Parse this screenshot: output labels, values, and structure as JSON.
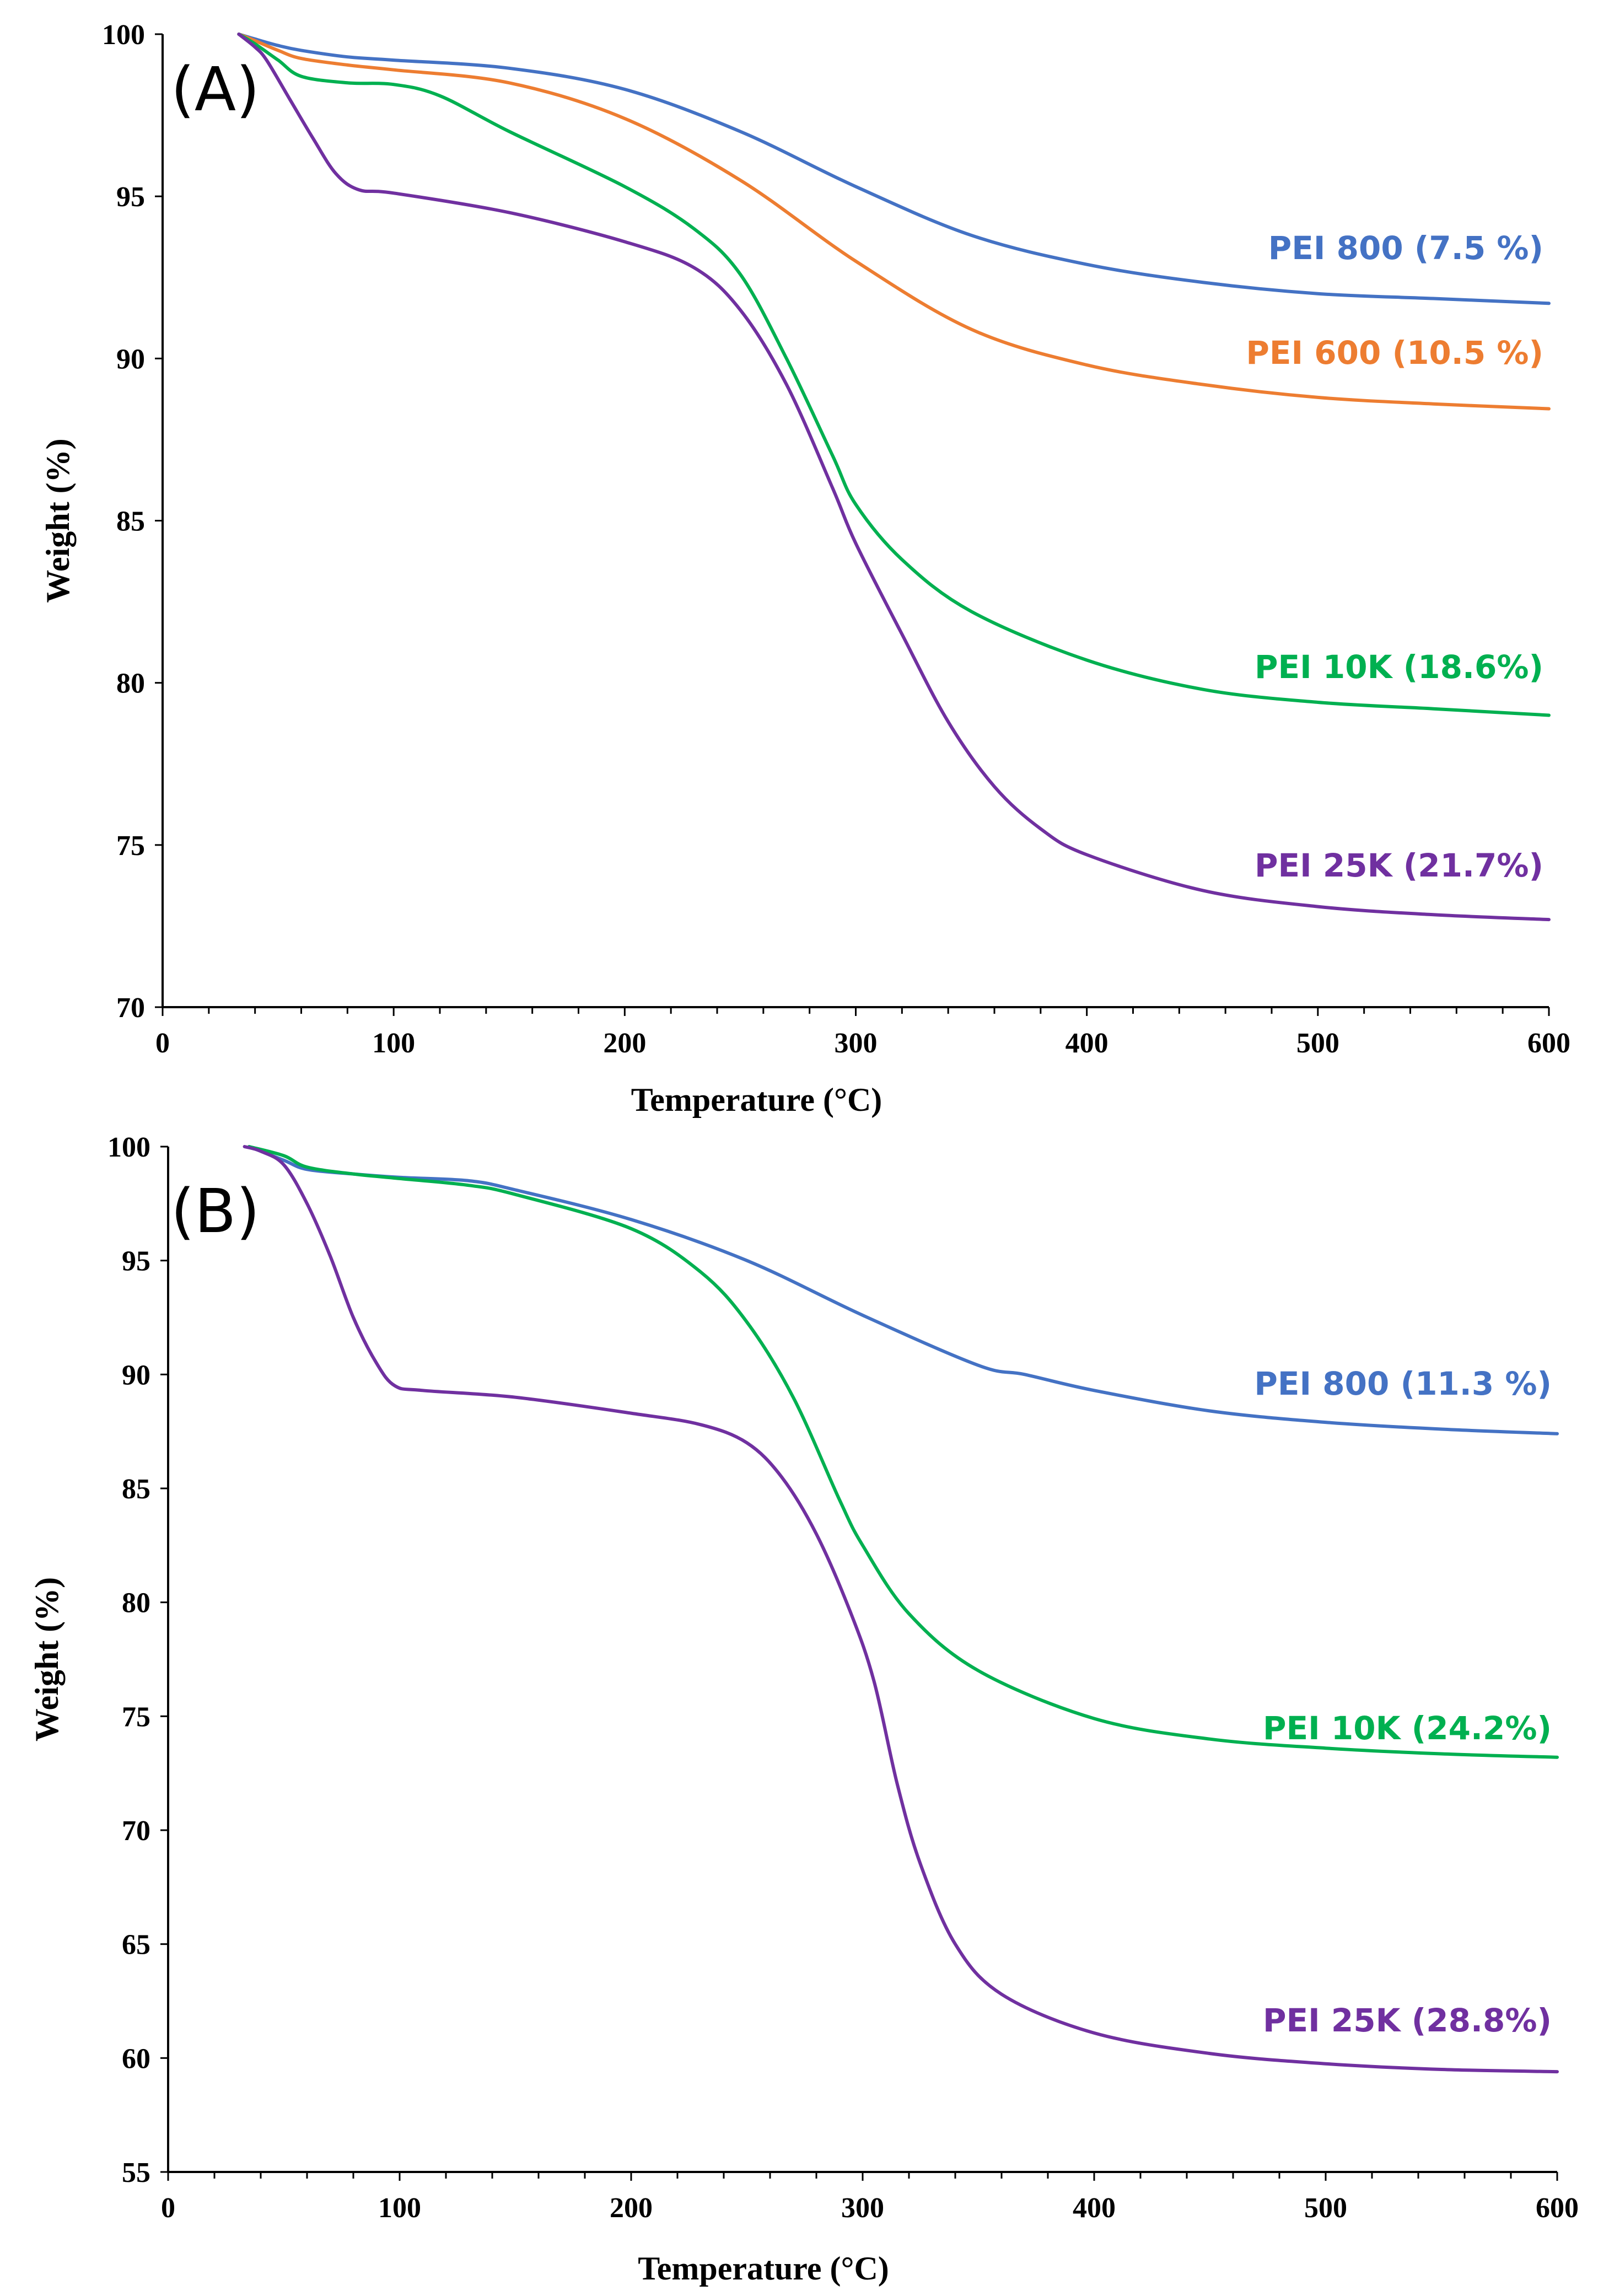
{
  "chart_data": [
    {
      "type": "line",
      "panel_label": "(A)",
      "xlabel": "Temperature (°C)",
      "ylabel": "Weight (%)",
      "xlim": [
        0,
        600
      ],
      "ylim": [
        70,
        100
      ],
      "xticks": [
        0,
        100,
        200,
        300,
        400,
        500,
        600
      ],
      "yticks": [
        70,
        75,
        80,
        85,
        90,
        95,
        100
      ],
      "grid": false,
      "series": [
        {
          "name": "PEI 800 (7.5 %)",
          "color": "#4472C4",
          "points": [
            [
              33,
              100
            ],
            [
              40,
              99.85
            ],
            [
              50,
              99.65
            ],
            [
              60,
              99.5
            ],
            [
              80,
              99.3
            ],
            [
              100,
              99.2
            ],
            [
              150,
              98.95
            ],
            [
              200,
              98.3
            ],
            [
              250,
              97.0
            ],
            [
              300,
              95.3
            ],
            [
              350,
              93.8
            ],
            [
              400,
              92.9
            ],
            [
              450,
              92.35
            ],
            [
              500,
              92.0
            ],
            [
              550,
              91.85
            ],
            [
              600,
              91.7
            ]
          ]
        },
        {
          "name": "PEI 600 (10.5 %)",
          "color": "#ED7D31",
          "points": [
            [
              33,
              100
            ],
            [
              40,
              99.8
            ],
            [
              50,
              99.5
            ],
            [
              60,
              99.25
            ],
            [
              80,
              99.05
            ],
            [
              100,
              98.9
            ],
            [
              150,
              98.5
            ],
            [
              200,
              97.4
            ],
            [
              250,
              95.5
            ],
            [
              300,
              93.0
            ],
            [
              350,
              90.9
            ],
            [
              400,
              89.8
            ],
            [
              450,
              89.2
            ],
            [
              500,
              88.8
            ],
            [
              550,
              88.6
            ],
            [
              600,
              88.45
            ]
          ]
        },
        {
          "name": "PEI 10K (18.6%)",
          "color": "#00B050",
          "points": [
            [
              33,
              100
            ],
            [
              40,
              99.7
            ],
            [
              50,
              99.2
            ],
            [
              60,
              98.7
            ],
            [
              80,
              98.5
            ],
            [
              100,
              98.45
            ],
            [
              120,
              98.1
            ],
            [
              150,
              97.0
            ],
            [
              200,
              95.3
            ],
            [
              230,
              94.0
            ],
            [
              250,
              92.6
            ],
            [
              270,
              90.0
            ],
            [
              290,
              87.0
            ],
            [
              300,
              85.5
            ],
            [
              320,
              83.8
            ],
            [
              350,
              82.2
            ],
            [
              400,
              80.7
            ],
            [
              450,
              79.8
            ],
            [
              500,
              79.4
            ],
            [
              550,
              79.2
            ],
            [
              600,
              79.0
            ]
          ]
        },
        {
          "name": "PEI 25K (21.7%)",
          "color": "#7030A0",
          "points": [
            [
              33,
              100
            ],
            [
              40,
              99.6
            ],
            [
              45,
              99.2
            ],
            [
              55,
              98.0
            ],
            [
              65,
              96.8
            ],
            [
              75,
              95.7
            ],
            [
              85,
              95.2
            ],
            [
              100,
              95.1
            ],
            [
              150,
              94.5
            ],
            [
              200,
              93.6
            ],
            [
              230,
              92.8
            ],
            [
              250,
              91.5
            ],
            [
              270,
              89.2
            ],
            [
              290,
              86.0
            ],
            [
              300,
              84.3
            ],
            [
              320,
              81.5
            ],
            [
              340,
              78.8
            ],
            [
              360,
              76.8
            ],
            [
              380,
              75.5
            ],
            [
              400,
              74.7
            ],
            [
              450,
              73.6
            ],
            [
              500,
              73.1
            ],
            [
              550,
              72.85
            ],
            [
              600,
              72.7
            ]
          ]
        }
      ]
    },
    {
      "type": "line",
      "panel_label": "(B)",
      "xlabel": "Temperature (°C)",
      "ylabel": "Weight (%)",
      "xlim": [
        0,
        600
      ],
      "ylim": [
        55,
        100
      ],
      "xticks": [
        0,
        100,
        200,
        300,
        400,
        500,
        600
      ],
      "yticks": [
        55,
        60,
        65,
        70,
        75,
        80,
        85,
        90,
        95,
        100
      ],
      "grid": false,
      "series": [
        {
          "name": "PEI 800 (11.3 %)",
          "color": "#4472C4",
          "points": [
            [
              35,
              100
            ],
            [
              50,
              99.4
            ],
            [
              60,
              99.0
            ],
            [
              80,
              98.8
            ],
            [
              100,
              98.65
            ],
            [
              130,
              98.5
            ],
            [
              150,
              98.1
            ],
            [
              200,
              96.8
            ],
            [
              250,
              95.0
            ],
            [
              300,
              92.6
            ],
            [
              350,
              90.4
            ],
            [
              370,
              90.0
            ],
            [
              400,
              89.3
            ],
            [
              450,
              88.4
            ],
            [
              500,
              87.9
            ],
            [
              550,
              87.6
            ],
            [
              600,
              87.4
            ]
          ]
        },
        {
          "name": "PEI 10K (24.2%)",
          "color": "#00B050",
          "points": [
            [
              35,
              100
            ],
            [
              50,
              99.6
            ],
            [
              60,
              99.1
            ],
            [
              80,
              98.8
            ],
            [
              100,
              98.6
            ],
            [
              130,
              98.3
            ],
            [
              150,
              97.9
            ],
            [
              200,
              96.4
            ],
            [
              230,
              94.5
            ],
            [
              250,
              92.3
            ],
            [
              270,
              89.0
            ],
            [
              290,
              84.5
            ],
            [
              300,
              82.5
            ],
            [
              320,
              79.5
            ],
            [
              350,
              77.0
            ],
            [
              400,
              74.9
            ],
            [
              450,
              74.0
            ],
            [
              500,
              73.6
            ],
            [
              550,
              73.35
            ],
            [
              600,
              73.2
            ]
          ]
        },
        {
          "name": "PEI 25K (28.8%)",
          "color": "#7030A0",
          "points": [
            [
              33,
              100
            ],
            [
              40,
              99.8
            ],
            [
              50,
              99.2
            ],
            [
              60,
              97.5
            ],
            [
              70,
              95.2
            ],
            [
              80,
              92.5
            ],
            [
              90,
              90.5
            ],
            [
              98,
              89.5
            ],
            [
              110,
              89.3
            ],
            [
              150,
              89.0
            ],
            [
              200,
              88.3
            ],
            [
              230,
              87.8
            ],
            [
              250,
              87.0
            ],
            [
              265,
              85.5
            ],
            [
              280,
              83.0
            ],
            [
              295,
              79.5
            ],
            [
              305,
              76.5
            ],
            [
              315,
              72.0
            ],
            [
              325,
              68.5
            ],
            [
              340,
              65.0
            ],
            [
              360,
              62.8
            ],
            [
              400,
              61.1
            ],
            [
              450,
              60.2
            ],
            [
              500,
              59.75
            ],
            [
              550,
              59.5
            ],
            [
              600,
              59.4
            ]
          ]
        }
      ]
    }
  ]
}
